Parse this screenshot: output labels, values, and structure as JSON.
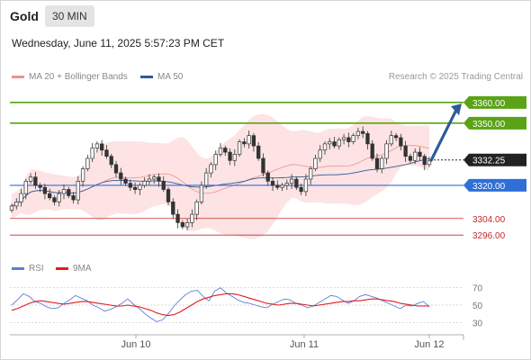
{
  "header": {
    "instrument": "Gold",
    "timeframe": "30 MIN"
  },
  "timestamp": "Wednesday, June 11, 2025 5:57:23 PM CET",
  "legend": {
    "ma20": {
      "label": "MA 20 + Bollinger Bands",
      "color": "#f08f8f"
    },
    "ma50": {
      "label": "MA 50",
      "color": "#2e5b9a"
    }
  },
  "credit": "Research © 2025 Trading Central",
  "rsi_legend": {
    "rsi": {
      "label": "RSI",
      "color": "#5b7fd6"
    },
    "ma9": {
      "label": "9MA",
      "color": "#e31b1b"
    }
  },
  "chart_data": {
    "type": "candlestick",
    "y_range": [
      3290,
      3366
    ],
    "x_ticks": [
      "Jun 10",
      "Jun 11",
      "Jun 12"
    ],
    "levels": [
      {
        "value": 3360.0,
        "label": "3360.00",
        "kind": "resistance",
        "color": "#5aa316"
      },
      {
        "value": 3350.0,
        "label": "3350.00",
        "kind": "resistance",
        "color": "#5aa316"
      },
      {
        "value": 3332.25,
        "label": "3332.25",
        "kind": "last",
        "color": "#222222"
      },
      {
        "value": 3320.0,
        "label": "3320.00",
        "kind": "pivot",
        "color": "#2f6fd6"
      },
      {
        "value": 3304.0,
        "label": "3304.00",
        "kind": "support",
        "color": "#c62828"
      },
      {
        "value": 3296.0,
        "label": "3296.00",
        "kind": "support",
        "color": "#c62828"
      }
    ],
    "forecast_arrow": {
      "from": 3332,
      "to": 3359
    },
    "candles_close": [
      3310,
      3312,
      3316,
      3322,
      3324,
      3320,
      3319,
      3316,
      3314,
      3312,
      3316,
      3318,
      3315,
      3313,
      3322,
      3328,
      3333,
      3338,
      3340,
      3337,
      3334,
      3330,
      3326,
      3323,
      3321,
      3319,
      3318,
      3320,
      3322,
      3323,
      3324,
      3322,
      3318,
      3312,
      3306,
      3302,
      3300,
      3302,
      3306,
      3312,
      3320,
      3326,
      3330,
      3335,
      3338,
      3336,
      3332,
      3335,
      3341,
      3340,
      3344,
      3339,
      3333,
      3326,
      3322,
      3320,
      3319,
      3320,
      3321,
      3323,
      3319,
      3317,
      3323,
      3328,
      3333,
      3337,
      3340,
      3341,
      3339,
      3342,
      3343,
      3341,
      3344,
      3346,
      3345,
      3340,
      3333,
      3328,
      3333,
      3340,
      3344,
      3343,
      3339,
      3334,
      3332,
      3336,
      3334,
      3330,
      3332
    ],
    "rsi": {
      "levels": [
        30,
        50,
        70
      ],
      "rsi_values": [
        50,
        56,
        63,
        60,
        54,
        52,
        48,
        46,
        47,
        52,
        56,
        61,
        58,
        55,
        50,
        47,
        43,
        45,
        48,
        52,
        57,
        51,
        46,
        40,
        35,
        31,
        33,
        40,
        49,
        56,
        62,
        66,
        67,
        60,
        55,
        66,
        70,
        64,
        60,
        56,
        53,
        52,
        50,
        48,
        47,
        51,
        54,
        57,
        56,
        52,
        50,
        47,
        49,
        53,
        57,
        61,
        60,
        56,
        52,
        55,
        60,
        62,
        60,
        58,
        55,
        52,
        49,
        46,
        50,
        49,
        52,
        54,
        48
      ],
      "ma9_values": [
        44,
        46,
        49,
        52,
        54,
        55,
        54,
        53,
        52,
        51,
        52,
        53,
        54,
        54,
        53,
        52,
        51,
        50,
        49,
        49,
        50,
        49,
        48,
        46,
        44,
        41,
        39,
        38,
        39,
        42,
        46,
        50,
        54,
        57,
        59,
        61,
        62,
        63,
        63,
        62,
        60,
        58,
        56,
        54,
        52,
        51,
        50,
        51,
        52,
        52,
        51,
        50,
        49,
        50,
        51,
        52,
        53,
        54,
        54,
        55,
        55,
        56,
        57,
        57,
        56,
        55,
        54,
        52,
        51,
        50,
        49,
        49,
        49
      ]
    }
  }
}
